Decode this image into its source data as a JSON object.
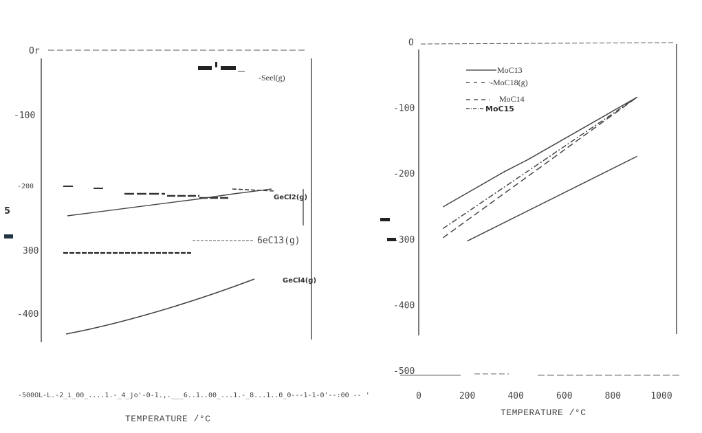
{
  "chart_data": [
    {
      "type": "line",
      "xlabel": "TEMPERATURE /°C",
      "ylabel": "",
      "xlim": [
        0,
        1000
      ],
      "ylim": [
        -500,
        0
      ],
      "y_ticks": [
        0,
        -100,
        -200,
        -300,
        -400,
        -500
      ],
      "y_tick_labels": [
        "0",
        "-100",
        "-200",
        "-300",
        "-400",
        "-500"
      ],
      "x_ticks": [
        0,
        200,
        400,
        600,
        800,
        1000
      ],
      "series": [
        {
          "name": "GeCl(g)",
          "style": "dashed",
          "x": [
            700,
            900
          ],
          "y": [
            -36,
            -40
          ]
        },
        {
          "name": "GeCl2(g)",
          "style": "solid",
          "x": [
            100,
            400,
            700,
            900
          ],
          "y": [
            -248,
            -236,
            -222,
            -211
          ]
        },
        {
          "name": "GeCl2(g) (dashed)",
          "style": "dashed",
          "x": [
            100,
            400,
            700,
            900
          ],
          "y": [
            -203,
            -208,
            -220,
            -210
          ]
        },
        {
          "name": "GeCl3(g)",
          "style": "dashed",
          "x": [
            100,
            600,
            800
          ],
          "y": [
            -304,
            -304,
            -290
          ]
        },
        {
          "name": "GeCl4(g)",
          "style": "solid",
          "x": [
            100,
            300,
            500,
            700,
            800
          ],
          "y": [
            -432,
            -415,
            -395,
            -368,
            -352
          ]
        }
      ],
      "labels": [
        "Or",
        "-100",
        "-200",
        "300",
        "-400",
        "TEMPERATURE /°C"
      ]
    },
    {
      "type": "line",
      "xlabel": "TEMPERATURE /°C",
      "ylabel": "",
      "xlim": [
        0,
        1000
      ],
      "ylim": [
        -500,
        0
      ],
      "y_ticks": [
        0,
        -100,
        -200,
        -300,
        -400,
        -500
      ],
      "y_tick_labels": [
        "O",
        "-100",
        "-200",
        "-300",
        "-400",
        "-500"
      ],
      "x_ticks": [
        0,
        200,
        400,
        600,
        800,
        1000
      ],
      "x_tick_labels": [
        "0",
        "200",
        "400",
        "600",
        "800",
        "1000"
      ],
      "legend": [
        "MoCl3",
        "MoCl3(g)",
        "MoCl4",
        "MoCl5"
      ],
      "series": [
        {
          "name": "MoCl3",
          "style": "solid",
          "x": [
            200,
            900
          ],
          "y": [
            -302,
            -173
          ]
        },
        {
          "name": "MoCl3(g)",
          "style": "solid",
          "x": [
            100,
            350,
            450,
            900
          ],
          "y": [
            -250,
            -197,
            -178,
            -83
          ]
        },
        {
          "name": "MoCl4",
          "style": "dashed",
          "x": [
            100,
            900
          ],
          "y": [
            -297,
            -83
          ]
        },
        {
          "name": "MoCl5",
          "style": "dashdot",
          "x": [
            100,
            900
          ],
          "y": [
            -283,
            -83
          ]
        }
      ],
      "xlabel_text": "TEMPERATURE /°C"
    }
  ],
  "left": {
    "labels": {
      "gecl": "-Seel(g)",
      "gecl2": "GeCl2(g)",
      "gecl3": "6eC13(g)",
      "gecl4": "GeCl4(g)"
    },
    "y_side": "5",
    "bottom_text": "-500OL-L.-2_i_00_....1.-_4_jo'-0-1.,.___6..1..00_...1.-_8...1..0_0---1-1-0'--:00 -- '",
    "xtitle": "TEMPERATURE /°C"
  },
  "right": {
    "legend": {
      "l1": "MoC13",
      "l2": "-MoC18(g)",
      "l3": "MoC14",
      "l4": "MoC15"
    },
    "xtitle": "TEMPERATURE /°C"
  }
}
